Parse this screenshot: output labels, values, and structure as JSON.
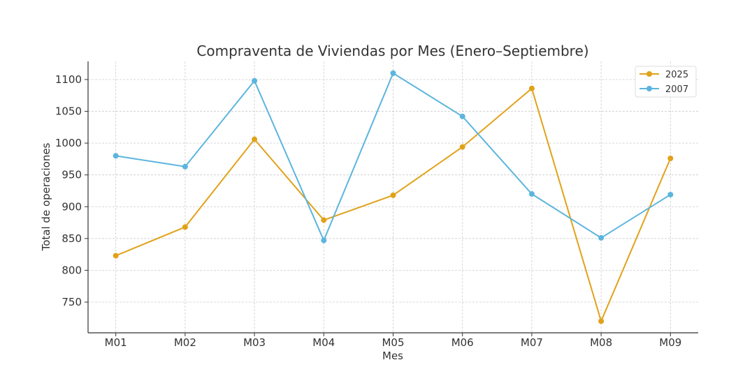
{
  "chart_data": {
    "type": "line",
    "title": "Compraventa de Viviendas por Mes (Enero–Septiembre)",
    "xlabel": "Mes",
    "ylabel": "Total de operaciones",
    "categories": [
      "M01",
      "M02",
      "M03",
      "M04",
      "M05",
      "M06",
      "M07",
      "M08",
      "M09"
    ],
    "ylim": [
      701.7,
      1128.5
    ],
    "yticks": [
      750,
      800,
      850,
      900,
      950,
      1000,
      1050,
      1100
    ],
    "grid": true,
    "legend_position": "top-right",
    "series": [
      {
        "name": "2025",
        "color": "#E1A21A",
        "values": [
          823,
          868,
          1006,
          879,
          918,
          994,
          1086,
          720,
          976
        ]
      },
      {
        "name": "2007",
        "color": "#5BB5DE",
        "values": [
          980,
          963,
          1098,
          847,
          1110,
          1042,
          920,
          851,
          919
        ]
      }
    ]
  }
}
